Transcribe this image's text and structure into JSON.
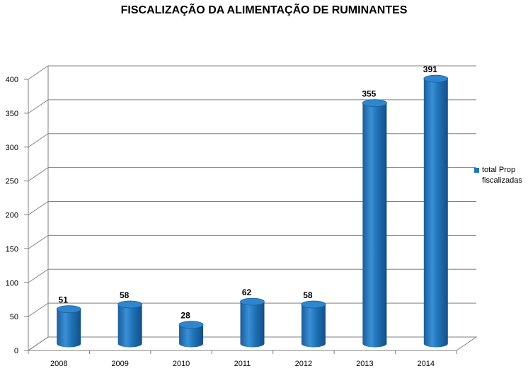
{
  "chart_data": {
    "type": "bar",
    "title": "FISCALIZAÇÃO DA ALIMENTAÇÃO DE RUMINANTES",
    "categories": [
      "2008",
      "2009",
      "2010",
      "2011",
      "2012",
      "2013",
      "2014"
    ],
    "series": [
      {
        "name": "total Prop fiscalizadas",
        "values": [
          51,
          58,
          28,
          62,
          58,
          355,
          391
        ],
        "color": "#1f73b8"
      }
    ],
    "data_labels": [
      "51",
      "58",
      "28",
      "62",
      "58",
      "355",
      "391"
    ],
    "yticks": [
      "0",
      "50",
      "100",
      "150",
      "200",
      "250",
      "300",
      "350",
      "400"
    ],
    "ylim": [
      0,
      400
    ],
    "grid": true,
    "legend_position": "right",
    "style": "3d-cylinder"
  }
}
